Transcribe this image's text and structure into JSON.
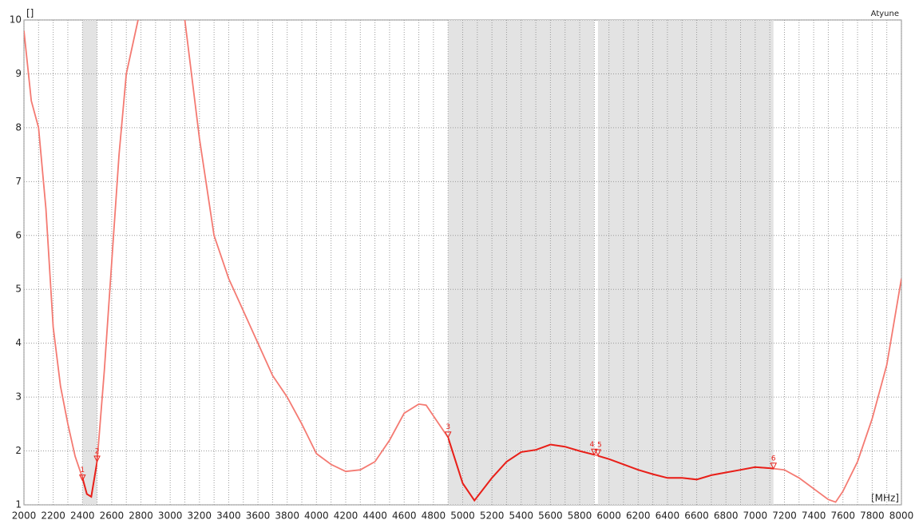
{
  "chart_data": {
    "type": "line",
    "y_label": "[]",
    "x_label": "[MHz]",
    "trace_label": "Atyune",
    "x": [
      2000,
      2050,
      2100,
      2150,
      2200,
      2250,
      2300,
      2350,
      2400,
      2430,
      2460,
      2500,
      2550,
      2600,
      2650,
      2700,
      2780,
      2900,
      3100,
      3200,
      3300,
      3400,
      3500,
      3600,
      3700,
      3800,
      3900,
      4000,
      4100,
      4200,
      4300,
      4400,
      4500,
      4600,
      4700,
      4750,
      4800,
      4900,
      5000,
      5080,
      5200,
      5300,
      5400,
      5500,
      5600,
      5700,
      5800,
      5900,
      6000,
      6100,
      6200,
      6300,
      6400,
      6500,
      6600,
      6700,
      6800,
      6900,
      7000,
      7100,
      7200,
      7300,
      7400,
      7500,
      7550,
      7600,
      7700,
      7800,
      7900,
      8000
    ],
    "series": [
      {
        "color": "#f47a72",
        "highlight_color": "#e8201a",
        "values": [
          9.8,
          8.5,
          8.0,
          6.5,
          4.3,
          3.2,
          2.5,
          1.9,
          1.5,
          1.2,
          1.15,
          1.8,
          3.5,
          5.5,
          7.5,
          9.0,
          10.0,
          null,
          10.0,
          7.8,
          6.0,
          5.2,
          4.6,
          4.0,
          3.4,
          3.0,
          2.5,
          1.95,
          1.75,
          1.62,
          1.65,
          1.8,
          2.2,
          2.7,
          2.87,
          2.85,
          2.65,
          2.25,
          1.4,
          1.08,
          1.5,
          1.8,
          1.98,
          2.02,
          2.12,
          2.08,
          2.0,
          1.93,
          1.85,
          1.75,
          1.65,
          1.57,
          1.5,
          1.5,
          1.47,
          1.55,
          1.6,
          1.65,
          1.7,
          1.68,
          1.65,
          1.5,
          1.3,
          1.1,
          1.05,
          1.25,
          1.8,
          2.6,
          3.6,
          5.2
        ]
      }
    ],
    "bands": [
      [
        2400,
        2500
      ],
      [
        4900,
        5900
      ],
      [
        5925,
        7125
      ]
    ],
    "markers": [
      {
        "label": "1",
        "x": 2400,
        "y": 1.45
      },
      {
        "label": "2",
        "x": 2500,
        "y": 1.8
      },
      {
        "label": "3",
        "x": 4900,
        "y": 2.25
      },
      {
        "label": "4",
        "x": 5900,
        "y": 1.93
      },
      {
        "label": "5",
        "x": 5925,
        "y": 1.92
      },
      {
        "label": "6",
        "x": 7125,
        "y": 1.67
      }
    ],
    "xlim": [
      2000,
      8000
    ],
    "ylim": [
      1,
      10
    ],
    "xticks": [
      2000,
      2200,
      2400,
      2600,
      2800,
      3000,
      3200,
      3400,
      3600,
      3800,
      4000,
      4200,
      4400,
      4600,
      4800,
      5000,
      5200,
      5400,
      5600,
      5800,
      6000,
      6200,
      6400,
      6600,
      6800,
      7000,
      7200,
      7400,
      7600,
      7800,
      8000
    ],
    "yticks": [
      1,
      2,
      3,
      4,
      5,
      6,
      7,
      8,
      9,
      10
    ],
    "grid": true
  }
}
